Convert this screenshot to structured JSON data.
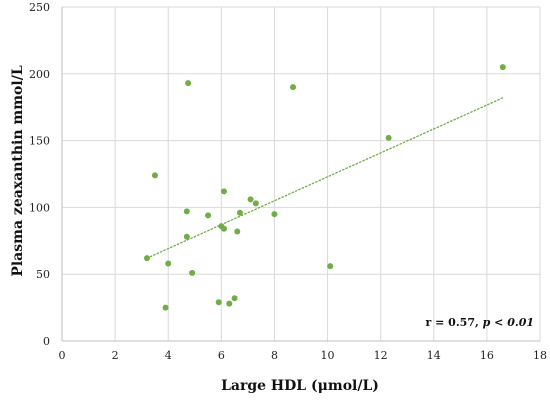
{
  "chart_data": {
    "type": "scatter",
    "title": "",
    "xlabel": "Large HDL (μmol/L)",
    "ylabel": "Plasma zeaxanthin mmol/L",
    "xlim": [
      0,
      18
    ],
    "ylim": [
      0,
      250
    ],
    "x_ticks": [
      0,
      2,
      4,
      6,
      8,
      10,
      12,
      14,
      16,
      18
    ],
    "y_ticks": [
      0,
      50,
      100,
      150,
      200,
      250
    ],
    "grid": true,
    "legend": "none",
    "series": [
      {
        "color": "#70ad47",
        "points": [
          {
            "x": 3.2,
            "y": 62
          },
          {
            "x": 3.5,
            "y": 124
          },
          {
            "x": 3.9,
            "y": 25
          },
          {
            "x": 4.0,
            "y": 58
          },
          {
            "x": 4.7,
            "y": 97
          },
          {
            "x": 4.7,
            "y": 78
          },
          {
            "x": 4.75,
            "y": 193
          },
          {
            "x": 4.9,
            "y": 51
          },
          {
            "x": 5.5,
            "y": 94
          },
          {
            "x": 5.9,
            "y": 29
          },
          {
            "x": 6.0,
            "y": 86
          },
          {
            "x": 6.1,
            "y": 84
          },
          {
            "x": 6.1,
            "y": 112
          },
          {
            "x": 6.3,
            "y": 28
          },
          {
            "x": 6.5,
            "y": 32
          },
          {
            "x": 6.6,
            "y": 82
          },
          {
            "x": 6.7,
            "y": 96
          },
          {
            "x": 7.1,
            "y": 106
          },
          {
            "x": 7.3,
            "y": 103
          },
          {
            "x": 8.0,
            "y": 95
          },
          {
            "x": 8.7,
            "y": 190
          },
          {
            "x": 10.1,
            "y": 56
          },
          {
            "x": 12.3,
            "y": 152
          },
          {
            "x": 16.6,
            "y": 205
          }
        ]
      }
    ],
    "trendline": {
      "style": "dotted",
      "color": "#70ad47",
      "x": [
        3.2,
        16.6
      ],
      "y": [
        62,
        182
      ]
    },
    "annotation": {
      "prefix": "r = 0.57, ",
      "italic": "p < 0.01"
    }
  }
}
